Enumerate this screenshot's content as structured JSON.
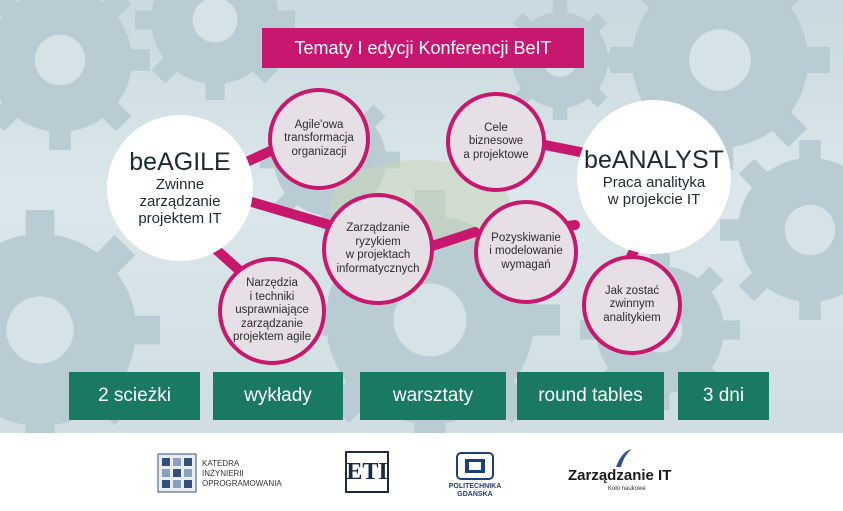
{
  "header": {
    "title": "Tematy I edycji Konferencji BeIT"
  },
  "left_track": {
    "title": "beAGILE",
    "subtitle_lines": [
      "Zwinne",
      "zarządzanie",
      "projektem IT"
    ],
    "topics": [
      [
        "Agile'owa",
        "transformacja",
        "organizacji"
      ],
      [
        "Zarządzanie",
        "ryzykiem",
        "w projektach",
        "informatycznych"
      ],
      [
        "Narzędzia",
        "i techniki",
        "usprawniające",
        "zarządzanie",
        "projektem agile"
      ]
    ]
  },
  "right_track": {
    "title": "beANALYST",
    "subtitle_lines": [
      "Praca analityka",
      "w projekcie IT"
    ],
    "topics": [
      [
        "Cele",
        "biznesowe",
        "a projektowe"
      ],
      [
        "Pozyskiwanie",
        "i modelowanie",
        "wymagań"
      ],
      [
        "Jak zostać",
        "zwinnym",
        "analitykiem"
      ]
    ]
  },
  "features": [
    "2 scieżki",
    "wykłady",
    "warsztaty",
    "round tables",
    "3 dni"
  ],
  "footer": {
    "katedra_lines": [
      "KATEDRA",
      "INŻYNIERII",
      "OPROGRAMOWANIA"
    ],
    "eti_letters": "ETI",
    "politechnika_lines": [
      "POLITECHNIKA",
      "GDAŃSKA"
    ],
    "zarzadzanie_title": "Zarządzanie IT",
    "zarzadzanie_subtitle": "Koło naukowe"
  },
  "colors": {
    "magenta": "#c8176e",
    "green": "#1a7a61",
    "bubble": "#e6dfe6",
    "navy": "#1d3f7a"
  }
}
